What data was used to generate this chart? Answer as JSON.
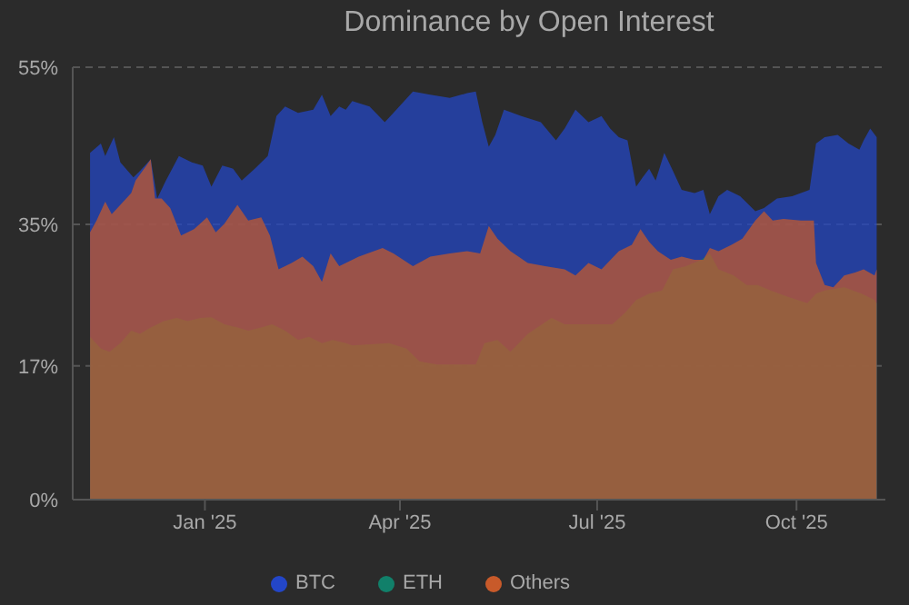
{
  "chart_data": {
    "type": "area",
    "title": "Dominance by Open Interest",
    "ylim": [
      0,
      55
    ],
    "yticks": [
      {
        "value": 0,
        "label": "0%"
      },
      {
        "value": 17,
        "label": "17%"
      },
      {
        "value": 35,
        "label": "35%"
      },
      {
        "value": 55,
        "label": "55%"
      }
    ],
    "xlim": [
      "2024-11-01",
      "2025-11-11"
    ],
    "xticks": [
      {
        "value": "2025-01-01",
        "label": "Jan '25"
      },
      {
        "value": "2025-04-01",
        "label": "Apr '25"
      },
      {
        "value": "2025-07-01",
        "label": "Jul '25"
      },
      {
        "value": "2025-10-01",
        "label": "Oct '25"
      }
    ],
    "grid": "y",
    "legend": "bottom",
    "series": [
      {
        "name": "BTC",
        "color": "#2346c8",
        "x": [
          "2024-11-09",
          "2024-11-14",
          "2024-11-16",
          "2024-11-20",
          "2024-11-23",
          "2024-11-29",
          "2024-12-02",
          "2024-12-07",
          "2024-12-10",
          "2024-12-14",
          "2024-12-20",
          "2024-12-26",
          "2024-12-31",
          "2025-01-04",
          "2025-01-09",
          "2025-01-14",
          "2025-01-18",
          "2025-01-24",
          "2025-01-30",
          "2025-02-03",
          "2025-02-07",
          "2025-02-13",
          "2025-02-20",
          "2025-02-24",
          "2025-02-28",
          "2025-03-04",
          "2025-03-07",
          "2025-03-10",
          "2025-03-18",
          "2025-03-25",
          "2025-03-29",
          "2025-04-07",
          "2025-04-15",
          "2025-04-24",
          "2025-05-02",
          "2025-05-06",
          "2025-05-09",
          "2025-05-12",
          "2025-05-15",
          "2025-05-19",
          "2025-05-27",
          "2025-06-05",
          "2025-06-12",
          "2025-06-16",
          "2025-06-21",
          "2025-06-27",
          "2025-07-03",
          "2025-07-07",
          "2025-07-11",
          "2025-07-15",
          "2025-07-19",
          "2025-07-22",
          "2025-07-25",
          "2025-07-28",
          "2025-08-01",
          "2025-08-05",
          "2025-08-09",
          "2025-08-15",
          "2025-08-19",
          "2025-08-22",
          "2025-08-26",
          "2025-08-30",
          "2025-09-05",
          "2025-09-12",
          "2025-09-16",
          "2025-09-22",
          "2025-09-29",
          "2025-10-07",
          "2025-10-10",
          "2025-10-14",
          "2025-10-20",
          "2025-10-25",
          "2025-10-30",
          "2025-11-01",
          "2025-11-04",
          "2025-11-07"
        ],
        "values": [
          44.1,
          45.3,
          43.7,
          46.1,
          42.9,
          41.0,
          41.8,
          43.3,
          38.3,
          40.6,
          43.7,
          42.9,
          42.5,
          39.8,
          42.5,
          42.1,
          40.6,
          42.1,
          43.7,
          48.8,
          50.0,
          49.2,
          49.6,
          51.5,
          48.8,
          50.0,
          49.6,
          50.7,
          50.0,
          48.0,
          49.2,
          51.9,
          51.5,
          51.1,
          51.7,
          51.9,
          48.0,
          44.9,
          46.4,
          49.6,
          48.8,
          48.0,
          45.7,
          47.2,
          49.6,
          48.0,
          48.8,
          47.2,
          46.1,
          45.7,
          39.8,
          41.0,
          42.1,
          40.6,
          44.1,
          41.8,
          39.4,
          39.0,
          39.4,
          36.3,
          38.6,
          39.4,
          38.6,
          36.7,
          37.1,
          38.3,
          38.6,
          39.4,
          45.3,
          46.1,
          46.4,
          45.3,
          44.5,
          45.7,
          47.2,
          46.1
        ]
      },
      {
        "name": "ETH",
        "color": "#11806a",
        "x": [
          "2024-11-09",
          "2024-11-14",
          "2024-11-18",
          "2024-11-23",
          "2024-11-28",
          "2024-12-02",
          "2024-12-07",
          "2024-12-13",
          "2024-12-19",
          "2024-12-24",
          "2024-12-30",
          "2025-01-04",
          "2025-01-10",
          "2025-01-16",
          "2025-01-21",
          "2025-01-27",
          "2025-02-01",
          "2025-02-07",
          "2025-02-13",
          "2025-02-18",
          "2025-02-24",
          "2025-03-01",
          "2025-03-07",
          "2025-03-10",
          "2025-03-27",
          "2025-04-04",
          "2025-04-10",
          "2025-04-18",
          "2025-04-28",
          "2025-05-06",
          "2025-05-10",
          "2025-05-16",
          "2025-05-22",
          "2025-05-30",
          "2025-06-10",
          "2025-06-16",
          "2025-06-24",
          "2025-07-03",
          "2025-07-08",
          "2025-07-14",
          "2025-07-19",
          "2025-07-25",
          "2025-07-31",
          "2025-08-05",
          "2025-08-11",
          "2025-08-18",
          "2025-08-22",
          "2025-08-26",
          "2025-09-02",
          "2025-09-08",
          "2025-09-13",
          "2025-09-19",
          "2025-09-27",
          "2025-10-06",
          "2025-10-10",
          "2025-10-14",
          "2025-10-23",
          "2025-10-31",
          "2025-11-06",
          "2025-11-07"
        ],
        "values": [
          20.7,
          19.2,
          18.8,
          19.9,
          21.5,
          21.1,
          21.9,
          22.7,
          23.1,
          22.7,
          23.1,
          23.2,
          22.3,
          21.9,
          21.5,
          21.9,
          22.3,
          21.5,
          20.3,
          20.7,
          19.9,
          20.3,
          19.9,
          19.6,
          19.9,
          19.2,
          17.6,
          17.2,
          17.2,
          17.2,
          19.9,
          20.3,
          18.8,
          21.1,
          23.1,
          22.3,
          22.3,
          22.3,
          22.3,
          23.8,
          25.4,
          26.2,
          26.6,
          29.3,
          29.7,
          30.5,
          31.3,
          29.3,
          28.5,
          27.3,
          27.3,
          26.6,
          25.8,
          25.0,
          26.2,
          26.6,
          27.0,
          26.2,
          25.4,
          25.0
        ]
      },
      {
        "name": "Others",
        "color": "#c85a2a",
        "x": [
          "2024-11-09",
          "2024-11-12",
          "2024-11-16",
          "2024-11-19",
          "2024-11-23",
          "2024-11-28",
          "2024-11-30",
          "2024-12-05",
          "2024-12-07",
          "2024-12-09",
          "2024-12-12",
          "2024-12-16",
          "2024-12-21",
          "2024-12-27",
          "2025-01-02",
          "2025-01-06",
          "2025-01-10",
          "2025-01-16",
          "2025-01-21",
          "2025-01-27",
          "2025-01-31",
          "2025-02-04",
          "2025-02-10",
          "2025-02-15",
          "2025-02-20",
          "2025-02-24",
          "2025-02-28",
          "2025-03-04",
          "2025-03-13",
          "2025-03-24",
          "2025-03-29",
          "2025-04-07",
          "2025-04-15",
          "2025-04-24",
          "2025-05-02",
          "2025-05-08",
          "2025-05-12",
          "2025-05-16",
          "2025-05-22",
          "2025-05-30",
          "2025-06-07",
          "2025-06-16",
          "2025-06-21",
          "2025-06-27",
          "2025-07-03",
          "2025-07-11",
          "2025-07-17",
          "2025-07-21",
          "2025-07-25",
          "2025-07-29",
          "2025-08-04",
          "2025-08-09",
          "2025-08-15",
          "2025-08-19",
          "2025-08-22",
          "2025-08-26",
          "2025-09-01",
          "2025-09-06",
          "2025-09-12",
          "2025-09-16",
          "2025-09-20",
          "2025-09-25",
          "2025-10-03",
          "2025-10-09",
          "2025-10-10",
          "2025-10-14",
          "2025-10-18",
          "2025-10-23",
          "2025-10-28",
          "2025-11-01",
          "2025-11-06",
          "2025-11-07"
        ],
        "values": [
          34.0,
          35.5,
          37.9,
          36.3,
          37.5,
          39.0,
          40.6,
          42.5,
          43.3,
          38.3,
          38.3,
          37.1,
          33.6,
          34.4,
          35.9,
          34.0,
          35.1,
          37.5,
          35.5,
          35.9,
          33.6,
          29.3,
          30.1,
          30.9,
          29.7,
          27.7,
          31.3,
          29.7,
          30.9,
          32.0,
          31.3,
          29.7,
          30.9,
          31.3,
          31.6,
          31.3,
          34.8,
          33.2,
          31.6,
          30.1,
          29.7,
          29.3,
          28.5,
          30.1,
          29.3,
          31.6,
          32.4,
          34.4,
          32.8,
          31.6,
          30.5,
          30.9,
          30.5,
          30.5,
          32.0,
          31.6,
          32.4,
          33.2,
          35.5,
          36.7,
          35.5,
          35.7,
          35.5,
          35.5,
          30.1,
          27.3,
          27.0,
          28.5,
          28.9,
          29.3,
          28.5,
          29.3
        ]
      }
    ]
  }
}
